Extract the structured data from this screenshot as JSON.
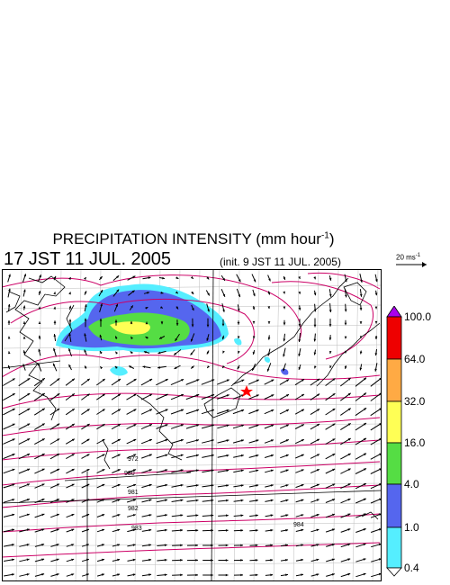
{
  "title": {
    "main": "PRECIPITATION INTENSITY (mm hour",
    "exponent": "-1",
    "close": ")"
  },
  "subtitle": "17 JST 11 JUL. 2005",
  "init_text": "(init. 9 JST 11 JUL. 2005)",
  "reference_vector": {
    "label": "20 ms",
    "exponent": "-1"
  },
  "colorbar": {
    "levels": [
      "0.4",
      "1.0",
      "4.0",
      "16.0",
      "32.0",
      "64.0",
      "100.0"
    ],
    "colors": [
      "#55eeff",
      "#5566ee",
      "#55dd44",
      "#ffff55",
      "#ffaa44",
      "#ee0000",
      "#aa00ee"
    ]
  },
  "contour_labels": [
    "972",
    "980",
    "981",
    "982",
    "983",
    "984"
  ],
  "marker": "red-star",
  "colors": {
    "contour": "#cc0066",
    "coastline": "#000000",
    "grid": "#bbbbbb",
    "vectors": "#000000"
  }
}
